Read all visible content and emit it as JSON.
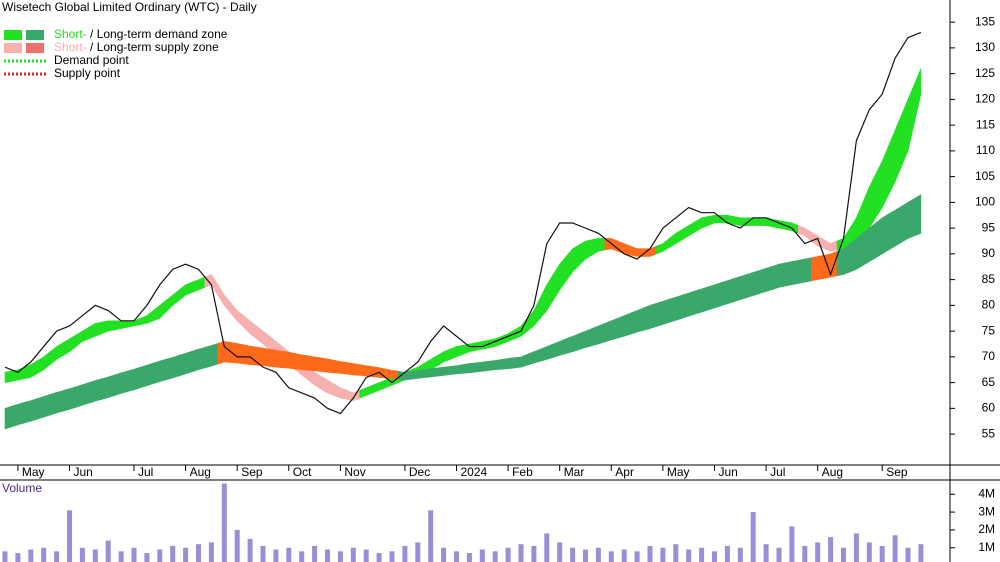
{
  "chart_data": [
    {
      "type": "line",
      "title": "Wisetech Global Limited Ordinary (WTC) - Daily",
      "legend": [
        {
          "parts": [
            "Short-",
            " / Long-term demand zone"
          ],
          "part_color": "#22e022",
          "colors": [
            "#22e022",
            "#3aa86b"
          ],
          "style": "swatch"
        },
        {
          "parts": [
            "Short-",
            " / Long-term supply zone"
          ],
          "part_color": "#f7b0b0",
          "colors": [
            "#f7b0b0",
            "#ef6f6f"
          ],
          "style": "swatch"
        },
        {
          "parts": [
            "Demand point"
          ],
          "colors": [
            "#22e022"
          ],
          "style": "dotted"
        },
        {
          "parts": [
            "Supply point"
          ],
          "colors": [
            "#e02020"
          ],
          "style": "dotted"
        }
      ],
      "categories": [
        null,
        "May",
        null,
        null,
        null,
        "Jun",
        null,
        null,
        null,
        null,
        "Jul",
        null,
        null,
        null,
        "Aug",
        null,
        null,
        null,
        "Sep",
        null,
        null,
        null,
        "Oct",
        null,
        null,
        null,
        "Nov",
        null,
        null,
        null,
        null,
        "Dec",
        null,
        null,
        null,
        "2024",
        null,
        null,
        null,
        "Feb",
        null,
        null,
        null,
        "Mar",
        null,
        null,
        null,
        "Apr",
        null,
        null,
        null,
        "May",
        null,
        null,
        null,
        "Jun",
        null,
        null,
        null,
        "Jul",
        null,
        null,
        null,
        "Aug",
        null,
        null,
        null,
        null,
        "Sep",
        null,
        null,
        null
      ],
      "color": "#111111",
      "values": [
        68,
        67,
        69,
        72,
        75,
        76,
        78,
        80,
        79,
        77,
        77,
        80,
        84,
        87,
        88,
        87,
        84,
        72,
        70,
        70,
        68,
        67,
        64,
        63,
        62,
        60,
        59,
        62,
        66,
        67,
        65,
        67,
        69,
        73,
        76,
        74,
        72,
        72,
        73,
        74,
        75,
        80,
        92,
        96,
        96,
        95,
        94,
        92,
        90,
        89,
        91,
        95,
        97,
        99,
        98,
        98,
        96,
        95,
        97,
        97,
        96,
        95,
        92,
        93,
        86,
        93,
        112,
        118,
        121,
        128,
        132,
        133
      ],
      "zones": [
        {
          "upper": [
            67,
            67.5,
            68.5,
            70,
            72,
            73.5,
            75,
            76.5,
            77,
            77,
            77,
            78,
            80,
            82,
            84,
            85,
            86,
            82,
            79,
            77,
            75,
            73,
            71,
            69,
            67,
            65.5,
            64,
            63,
            64,
            65,
            66,
            67,
            68,
            69.5,
            71,
            72,
            72.5,
            73,
            73.5,
            74.5,
            76,
            79,
            84,
            88,
            91,
            92.5,
            93,
            93,
            92,
            91,
            91,
            92,
            94,
            95.5,
            97,
            97.5,
            97.5,
            97,
            97,
            97,
            96.5,
            96,
            95,
            93.5,
            92,
            93,
            97,
            103,
            108,
            114,
            120,
            126
          ],
          "lower": [
            65,
            65.5,
            66,
            67.5,
            69.5,
            71,
            73,
            74,
            75,
            75.5,
            76,
            76.5,
            77.5,
            80,
            82,
            83,
            84,
            80,
            77,
            74.5,
            72.5,
            70.5,
            68.5,
            66.5,
            64.5,
            63,
            62,
            61.5,
            62.5,
            63.5,
            64.5,
            65.5,
            66.5,
            67.5,
            69,
            70,
            71,
            71.5,
            72,
            73,
            74,
            76,
            79,
            83,
            86.5,
            89,
            90.5,
            91,
            90,
            89.5,
            89.5,
            90.5,
            92,
            93.5,
            95,
            96,
            96,
            95.5,
            95.5,
            95.5,
            95,
            94.5,
            93.5,
            91.5,
            90.5,
            91,
            92,
            95,
            99,
            104,
            110,
            121
          ],
          "colors": [
            "#22e022",
            "#22e022",
            "#22e022",
            "#22e022",
            "#22e022",
            "#22e022",
            "#22e022",
            "#22e022",
            "#22e022",
            "#22e022",
            "#22e022",
            "#22e022",
            "#22e022",
            "#22e022",
            "#22e022",
            "#22e022",
            "#f7b0b0",
            "#f7b0b0",
            "#f7b0b0",
            "#f7b0b0",
            "#f7b0b0",
            "#f7b0b0",
            "#f7b0b0",
            "#f7b0b0",
            "#f7b0b0",
            "#f7b0b0",
            "#f7b0b0",
            "#f7b0b0",
            "#22e022",
            "#22e022",
            "#22e022",
            "#22e022",
            "#22e022",
            "#22e022",
            "#22e022",
            "#22e022",
            "#22e022",
            "#22e022",
            "#22e022",
            "#22e022",
            "#22e022",
            "#22e022",
            "#22e022",
            "#22e022",
            "#22e022",
            "#22e022",
            "#22e022",
            "#ff6a1a",
            "#ff6a1a",
            "#ff6a1a",
            "#ff6a1a",
            "#22e022",
            "#22e022",
            "#22e022",
            "#22e022",
            "#22e022",
            "#22e022",
            "#22e022",
            "#22e022",
            "#22e022",
            "#22e022",
            "#22e022",
            "#f7b0b0",
            "#f7b0b0",
            "#f7b0b0",
            "#22e022",
            "#22e022",
            "#22e022",
            "#22e022",
            "#22e022",
            "#22e022",
            "#22e022"
          ]
        },
        {
          "upper": [
            60,
            60.8,
            61.5,
            62.3,
            63.1,
            63.8,
            64.6,
            65.4,
            66.1,
            66.9,
            67.6,
            68.4,
            69.2,
            69.9,
            70.7,
            71.5,
            72.2,
            73,
            72.6,
            72.1,
            71.7,
            71.3,
            70.9,
            70.4,
            70,
            69.6,
            69.1,
            68.7,
            68.3,
            67.9,
            67.4,
            67,
            67.3,
            67.7,
            68,
            68.3,
            68.7,
            69,
            69.3,
            69.7,
            70,
            71,
            72,
            73,
            74,
            75,
            76,
            77,
            78,
            79,
            80,
            80.8,
            81.6,
            82.4,
            83.2,
            84,
            84.8,
            85.6,
            86.4,
            87.2,
            88,
            88.5,
            89,
            89.5,
            90,
            91,
            93,
            95,
            97,
            98.5,
            100,
            101.5
          ],
          "lower": [
            56,
            56.8,
            57.5,
            58.3,
            59.1,
            59.8,
            60.6,
            61.4,
            62.1,
            62.9,
            63.6,
            64.4,
            65.2,
            65.9,
            66.7,
            67.5,
            68.2,
            69,
            68.8,
            68.5,
            68.3,
            68,
            67.8,
            67.5,
            67.3,
            67,
            66.8,
            66.5,
            66.3,
            66,
            65.8,
            65.5,
            65.8,
            66.1,
            66.4,
            66.7,
            66.9,
            67.2,
            67.5,
            67.7,
            68,
            68.8,
            69.5,
            70.3,
            71,
            71.8,
            72.5,
            73.3,
            74,
            74.8,
            75.5,
            76.3,
            77.1,
            77.9,
            78.7,
            79.5,
            80.3,
            81.1,
            81.9,
            82.7,
            83.5,
            84,
            84.5,
            85,
            85.5,
            86,
            87,
            88.5,
            90,
            91.5,
            93,
            94
          ],
          "colors": [
            "#3aa86b",
            "#3aa86b",
            "#3aa86b",
            "#3aa86b",
            "#3aa86b",
            "#3aa86b",
            "#3aa86b",
            "#3aa86b",
            "#3aa86b",
            "#3aa86b",
            "#3aa86b",
            "#3aa86b",
            "#3aa86b",
            "#3aa86b",
            "#3aa86b",
            "#3aa86b",
            "#3aa86b",
            "#ff6a1a",
            "#ff6a1a",
            "#ff6a1a",
            "#ff6a1a",
            "#ff6a1a",
            "#ff6a1a",
            "#ff6a1a",
            "#ff6a1a",
            "#ff6a1a",
            "#ff6a1a",
            "#ff6a1a",
            "#ff6a1a",
            "#ff6a1a",
            "#ff6a1a",
            "#3aa86b",
            "#3aa86b",
            "#3aa86b",
            "#3aa86b",
            "#3aa86b",
            "#3aa86b",
            "#3aa86b",
            "#3aa86b",
            "#3aa86b",
            "#3aa86b",
            "#3aa86b",
            "#3aa86b",
            "#3aa86b",
            "#3aa86b",
            "#3aa86b",
            "#3aa86b",
            "#3aa86b",
            "#3aa86b",
            "#3aa86b",
            "#3aa86b",
            "#3aa86b",
            "#3aa86b",
            "#3aa86b",
            "#3aa86b",
            "#3aa86b",
            "#3aa86b",
            "#3aa86b",
            "#3aa86b",
            "#3aa86b",
            "#3aa86b",
            "#3aa86b",
            "#3aa86b",
            "#ff6a1a",
            "#ff6a1a",
            "#3aa86b",
            "#3aa86b",
            "#3aa86b",
            "#3aa86b",
            "#3aa86b",
            "#3aa86b",
            "#3aa86b"
          ]
        }
      ],
      "ylim": [
        49,
        139.3
      ],
      "yticks": [
        55,
        60,
        65,
        70,
        75,
        80,
        85,
        90,
        95,
        100,
        105,
        110,
        115,
        120,
        125,
        130,
        135
      ]
    },
    {
      "type": "bar",
      "title": "Volume",
      "color": "#7b68c8",
      "values": [
        0.8,
        0.7,
        0.9,
        1.0,
        0.8,
        3.1,
        1.0,
        0.9,
        1.4,
        0.8,
        1.0,
        0.7,
        0.9,
        1.1,
        1.0,
        1.2,
        1.3,
        4.6,
        2.0,
        1.5,
        1.1,
        0.9,
        1.0,
        0.8,
        1.1,
        0.9,
        0.8,
        1.0,
        0.9,
        0.7,
        0.8,
        1.1,
        1.3,
        3.1,
        1.0,
        0.8,
        0.7,
        0.9,
        0.8,
        1.0,
        1.2,
        1.1,
        1.8,
        1.3,
        1.0,
        0.9,
        1.0,
        0.8,
        0.9,
        0.8,
        1.1,
        1.0,
        1.2,
        0.9,
        1.0,
        0.8,
        1.1,
        1.0,
        3.0,
        1.2,
        1.0,
        2.2,
        1.1,
        1.3,
        1.6,
        1.0,
        1.8,
        1.3,
        1.1,
        1.7,
        1.0,
        1.2
      ],
      "ylim": [
        0.2,
        4.8
      ],
      "yticks": [
        {
          "value": 1,
          "label": "1M"
        },
        {
          "value": 2,
          "label": "2M"
        },
        {
          "value": 3,
          "label": "3M"
        },
        {
          "value": 4,
          "label": "4M"
        }
      ]
    }
  ]
}
